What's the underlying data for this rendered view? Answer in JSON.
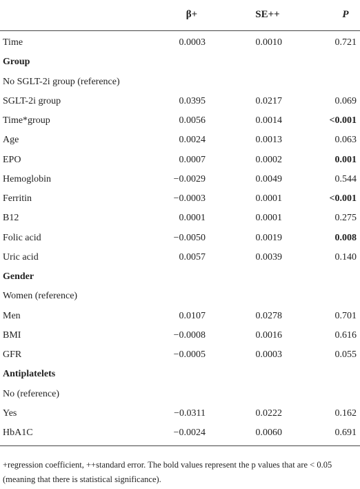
{
  "table": {
    "header": [
      "β+",
      "SE++",
      "P"
    ],
    "rows": [
      [
        "Time",
        "0.0003",
        "0.0010",
        "0.721"
      ],
      [
        {
          "text": "Group",
          "bold": true
        }
      ],
      [
        "No SGLT-2i group (reference)"
      ],
      [
        "SGLT-2i group",
        "0.0395",
        "0.0217",
        "0.069"
      ],
      [
        "Time*group",
        "0.0056",
        "0.0014",
        {
          "text": "<0.001",
          "bold": true
        }
      ],
      [
        "Age",
        "0.0024",
        "0.0013",
        "0.063"
      ],
      [
        "EPO",
        "0.0007",
        "0.0002",
        {
          "text": "0.001",
          "bold": true
        }
      ],
      [
        "Hemoglobin",
        "−0.0029",
        "0.0049",
        "0.544"
      ],
      [
        "Ferritin",
        "−0.0003",
        "0.0001",
        {
          "text": "<0.001",
          "bold": true
        }
      ],
      [
        "B12",
        "0.0001",
        "0.0001",
        "0.275"
      ],
      [
        "Folic acid",
        "−0.0050",
        "0.0019",
        {
          "text": "0.008",
          "bold": true
        }
      ],
      [
        "Uric acid",
        "0.0057",
        "0.0039",
        "0.140"
      ],
      [
        {
          "text": "Gender",
          "bold": true
        }
      ],
      [
        "Women (reference)"
      ],
      [
        "Men",
        "0.0107",
        "0.0278",
        "0.701"
      ],
      [
        "BMI",
        "−0.0008",
        "0.0016",
        "0.616"
      ],
      [
        "GFR",
        "−0.0005",
        "0.0003",
        "0.055"
      ],
      [
        {
          "text": "Antiplatelets",
          "bold": true
        }
      ],
      [
        "No (reference)"
      ],
      [
        "Yes",
        "−0.0311",
        "0.0222",
        "0.162"
      ],
      [
        "HbA1C",
        "−0.0024",
        "0.0060",
        "0.691"
      ]
    ],
    "footnote": "+regression coefficient, ++standard error. The bold values represent the p values that are < 0.05 (meaning that there is statistical significance)."
  }
}
